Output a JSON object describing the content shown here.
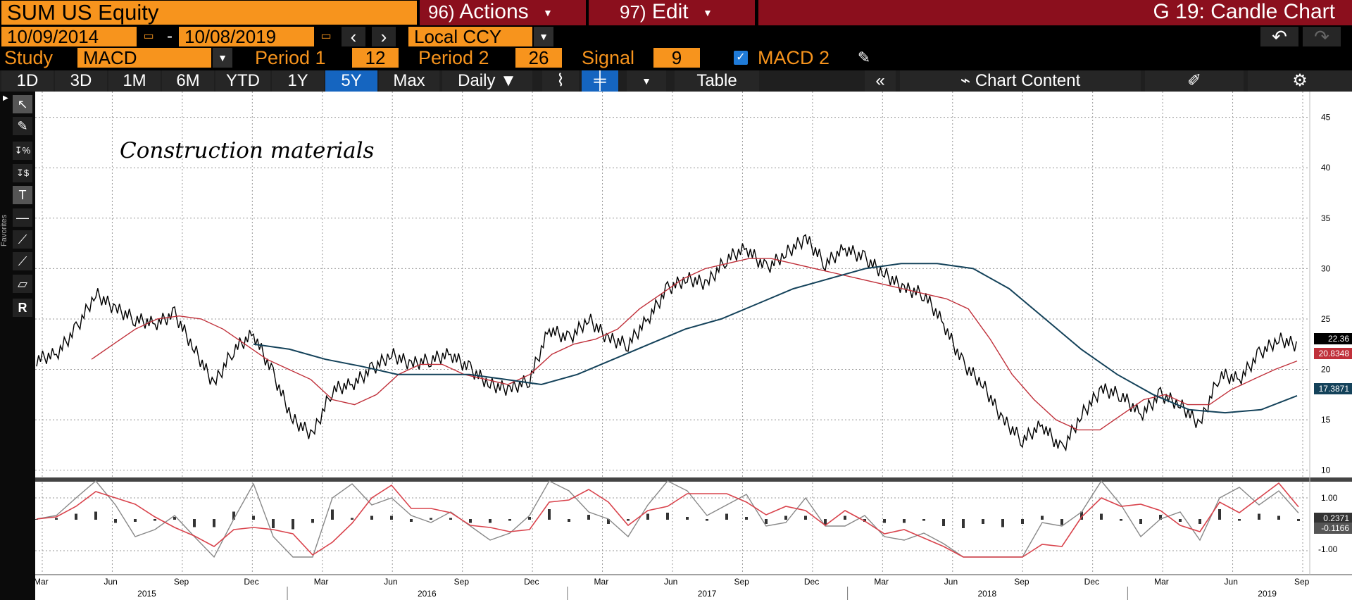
{
  "header": {
    "ticker": "SUM US Equity",
    "actions_num": "96)",
    "actions_label": "Actions",
    "edit_num": "97)",
    "edit_label": "Edit",
    "title": "G 19: Candle Chart"
  },
  "range": {
    "start": "10/09/2014",
    "dash": "-",
    "end": "10/08/2019",
    "prev_icon": "‹",
    "next_icon": "›",
    "currency": "Local CCY"
  },
  "study": {
    "label": "Study",
    "value": "MACD",
    "period1_label": "Period 1",
    "period1": "12",
    "period2_label": "Period 2",
    "period2": "26",
    "signal_label": "Signal",
    "signal": "9",
    "macd2_label": "MACD 2"
  },
  "tabs": [
    "1D",
    "3D",
    "1M",
    "6M",
    "YTD",
    "1Y",
    "5Y",
    "Max"
  ],
  "active_tab": "5Y",
  "period_select": "Daily",
  "table_label": "Table",
  "chart_content_label": "Chart Content",
  "annotation": "Construction materials",
  "price_labels": {
    "last": "22.36",
    "ma_red": "20.8348",
    "ma_blue": "17.3871"
  },
  "macd_labels": {
    "upper": "1.00",
    "lower": "-1.00",
    "macd": "0.2371",
    "signal": "-0.1166"
  },
  "colors": {
    "accent_orange": "#f7941d",
    "header_red": "#8b0f1d",
    "ma_red": "#c0303a",
    "ma_blue": "#14425a",
    "active_tab": "#1565c0"
  },
  "chart_data": {
    "type": "line",
    "ylim": [
      9,
      47
    ],
    "yticks": [
      10,
      15,
      20,
      25,
      30,
      35,
      40,
      45
    ],
    "x_month_labels": [
      "Mar",
      "Jun",
      "Sep",
      "Dec",
      "Mar",
      "Jun",
      "Sep",
      "Dec",
      "Mar",
      "Jun",
      "Sep",
      "Dec",
      "Mar",
      "Jun",
      "Sep",
      "Dec",
      "Mar",
      "Jun",
      "Sep"
    ],
    "x_year_labels": [
      "2015",
      "2016",
      "2017",
      "2018",
      "2019"
    ],
    "series": [
      {
        "values": [
          21.0,
          21.5,
          24.0,
          27.5,
          26.0,
          25.0,
          24.5,
          25.5,
          22.0,
          18.5,
          22.0,
          23.5,
          19.5,
          15.0,
          13.5,
          18.0,
          18.5,
          20.0,
          21.5,
          20.5,
          21.0,
          21.5,
          20.0,
          18.5,
          18.0,
          19.0,
          24.0,
          23.0,
          25.0,
          23.0,
          22.5,
          25.0,
          28.0,
          29.0,
          28.5,
          31.0,
          32.0,
          30.0,
          31.5,
          33.0,
          30.5,
          32.0,
          31.0,
          29.5,
          28.0,
          27.5,
          24.5,
          20.5,
          18.5,
          15.0,
          13.0,
          14.5,
          12.0,
          15.5,
          18.0,
          17.5,
          15.5,
          17.5,
          16.5,
          14.5,
          19.5,
          19.0,
          21.5,
          23.0,
          22.36
        ]
      },
      {
        "values": [
          21.0,
          22.5,
          24.0,
          25.0,
          25.3,
          25.0,
          24.0,
          22.5,
          21.0,
          20.0,
          19.0,
          17.0,
          16.5,
          17.5,
          19.5,
          20.5,
          20.5,
          19.5,
          19.0,
          18.5,
          19.5,
          21.5,
          22.5,
          23.0,
          24.0,
          26.0,
          27.5,
          29.0,
          30.0,
          30.5,
          31.0,
          31.0,
          30.5,
          30.0,
          29.5,
          29.0,
          28.5,
          28.0,
          27.5,
          27.0,
          26.0,
          23.0,
          19.5,
          17.0,
          15.0,
          14.0,
          14.0,
          15.5,
          17.0,
          17.5,
          16.5,
          16.5,
          18.0,
          19.0,
          20.0,
          20.8348
        ]
      },
      {
        "values": [
          22.5,
          22.0,
          21.0,
          20.3,
          19.5,
          19.5,
          19.5,
          19.0,
          18.5,
          19.5,
          21.0,
          22.5,
          24.0,
          25.0,
          26.5,
          28.0,
          29.0,
          30.0,
          30.5,
          30.5,
          30.0,
          28.0,
          25.0,
          22.0,
          19.5,
          17.5,
          16.0,
          15.7,
          16.0,
          17.3871
        ]
      }
    ]
  }
}
